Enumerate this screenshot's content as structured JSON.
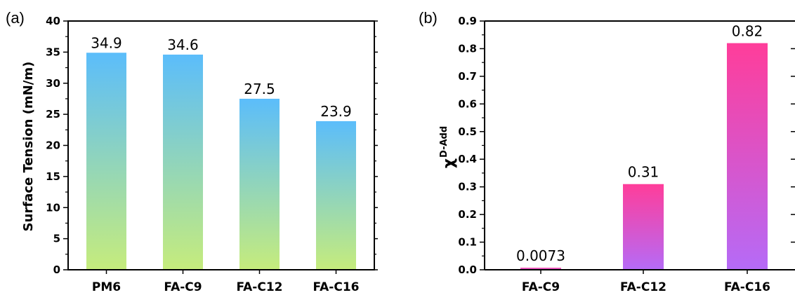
{
  "chart_data": [
    {
      "panel": "(a)",
      "type": "bar",
      "categories": [
        "PM6",
        "FA-C9",
        "FA-C12",
        "FA-C16"
      ],
      "values": [
        34.9,
        34.6,
        27.5,
        23.9
      ],
      "value_labels": [
        "34.9",
        "34.6",
        "27.5",
        "23.9"
      ],
      "ylabel": "Surface Tension (mN/m)",
      "ylim": [
        0,
        40
      ],
      "yticks": [
        0,
        5,
        10,
        15,
        20,
        25,
        30,
        35,
        40
      ],
      "bar_gradient": {
        "top": "#5bbdfb",
        "bottom": "#c6ec7c"
      }
    },
    {
      "panel": "(b)",
      "type": "bar",
      "categories": [
        "FA-C9",
        "FA-C12",
        "FA-C16"
      ],
      "values": [
        0.0073,
        0.31,
        0.82
      ],
      "value_labels": [
        "0.0073",
        "0.31",
        "0.82"
      ],
      "ylabel": "χ",
      "ylabel_superscript": "D-Add",
      "ylim": [
        0,
        0.9
      ],
      "yticks": [
        "0.0",
        "0.1",
        "0.2",
        "0.3",
        "0.4",
        "0.5",
        "0.6",
        "0.7",
        "0.8",
        "0.9"
      ],
      "bar_gradient": {
        "top": "#ff3d9a",
        "bottom": "#b56bf7"
      }
    }
  ]
}
